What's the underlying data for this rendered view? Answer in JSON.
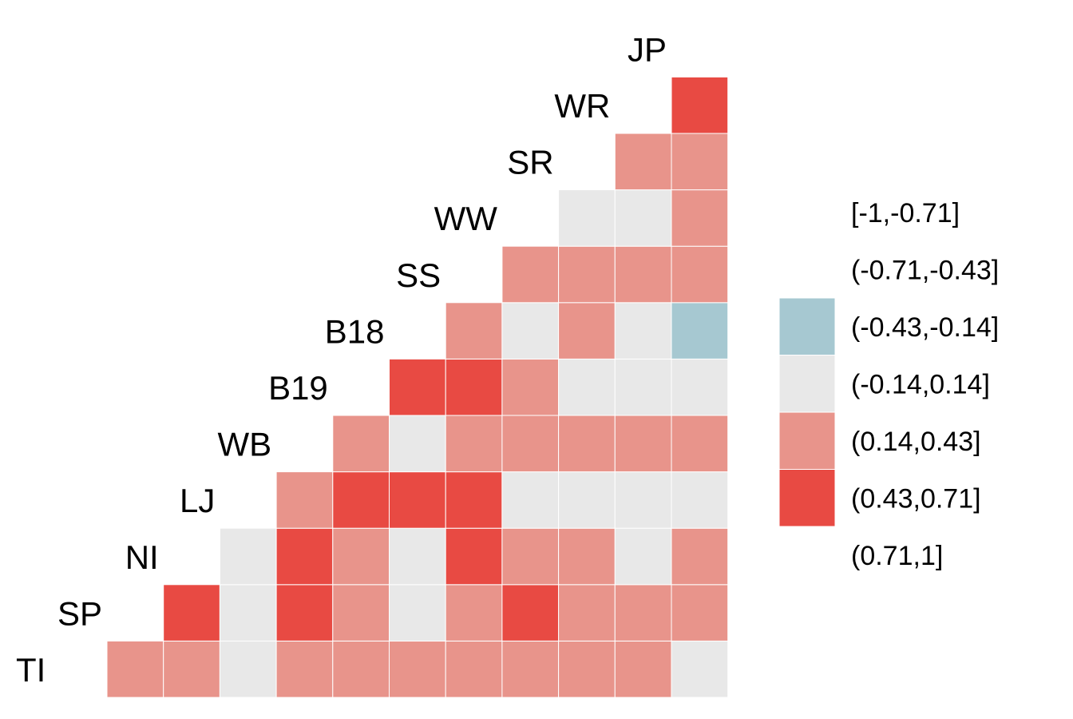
{
  "chart_data": {
    "type": "heatmap",
    "variables": [
      "TI",
      "SP",
      "NI",
      "LJ",
      "WB",
      "B19",
      "B18",
      "SS",
      "WW",
      "SR",
      "WR",
      "JP"
    ],
    "cells": [
      {
        "row": "SP",
        "col": "TI",
        "bin": "(0.14,0.43]"
      },
      {
        "row": "NI",
        "col": "TI",
        "bin": "(0.14,0.43]"
      },
      {
        "row": "NI",
        "col": "SP",
        "bin": "(0.43,0.71]"
      },
      {
        "row": "LJ",
        "col": "TI",
        "bin": "(-0.14,0.14]"
      },
      {
        "row": "LJ",
        "col": "SP",
        "bin": "(-0.14,0.14]"
      },
      {
        "row": "LJ",
        "col": "NI",
        "bin": "(-0.14,0.14]"
      },
      {
        "row": "WB",
        "col": "TI",
        "bin": "(0.14,0.43]"
      },
      {
        "row": "WB",
        "col": "SP",
        "bin": "(0.43,0.71]"
      },
      {
        "row": "WB",
        "col": "NI",
        "bin": "(0.43,0.71]"
      },
      {
        "row": "WB",
        "col": "LJ",
        "bin": "(0.14,0.43]"
      },
      {
        "row": "B19",
        "col": "TI",
        "bin": "(0.14,0.43]"
      },
      {
        "row": "B19",
        "col": "SP",
        "bin": "(0.14,0.43]"
      },
      {
        "row": "B19",
        "col": "NI",
        "bin": "(0.14,0.43]"
      },
      {
        "row": "B19",
        "col": "LJ",
        "bin": "(0.43,0.71]"
      },
      {
        "row": "B19",
        "col": "WB",
        "bin": "(0.14,0.43]"
      },
      {
        "row": "B18",
        "col": "TI",
        "bin": "(0.14,0.43]"
      },
      {
        "row": "B18",
        "col": "SP",
        "bin": "(-0.14,0.14]"
      },
      {
        "row": "B18",
        "col": "NI",
        "bin": "(-0.14,0.14]"
      },
      {
        "row": "B18",
        "col": "LJ",
        "bin": "(0.43,0.71]"
      },
      {
        "row": "B18",
        "col": "WB",
        "bin": "(-0.14,0.14]"
      },
      {
        "row": "B18",
        "col": "B19",
        "bin": "(0.43,0.71]"
      },
      {
        "row": "SS",
        "col": "TI",
        "bin": "(0.14,0.43]"
      },
      {
        "row": "SS",
        "col": "SP",
        "bin": "(0.14,0.43]"
      },
      {
        "row": "SS",
        "col": "NI",
        "bin": "(0.43,0.71]"
      },
      {
        "row": "SS",
        "col": "LJ",
        "bin": "(0.43,0.71]"
      },
      {
        "row": "SS",
        "col": "WB",
        "bin": "(0.14,0.43]"
      },
      {
        "row": "SS",
        "col": "B19",
        "bin": "(0.43,0.71]"
      },
      {
        "row": "SS",
        "col": "B18",
        "bin": "(0.14,0.43]"
      },
      {
        "row": "WW",
        "col": "TI",
        "bin": "(0.14,0.43]"
      },
      {
        "row": "WW",
        "col": "SP",
        "bin": "(0.43,0.71]"
      },
      {
        "row": "WW",
        "col": "NI",
        "bin": "(0.14,0.43]"
      },
      {
        "row": "WW",
        "col": "LJ",
        "bin": "(-0.14,0.14]"
      },
      {
        "row": "WW",
        "col": "WB",
        "bin": "(0.14,0.43]"
      },
      {
        "row": "WW",
        "col": "B19",
        "bin": "(0.14,0.43]"
      },
      {
        "row": "WW",
        "col": "B18",
        "bin": "(-0.14,0.14]"
      },
      {
        "row": "WW",
        "col": "SS",
        "bin": "(0.14,0.43]"
      },
      {
        "row": "SR",
        "col": "TI",
        "bin": "(0.14,0.43]"
      },
      {
        "row": "SR",
        "col": "SP",
        "bin": "(0.14,0.43]"
      },
      {
        "row": "SR",
        "col": "NI",
        "bin": "(0.14,0.43]"
      },
      {
        "row": "SR",
        "col": "LJ",
        "bin": "(-0.14,0.14]"
      },
      {
        "row": "SR",
        "col": "WB",
        "bin": "(0.14,0.43]"
      },
      {
        "row": "SR",
        "col": "B19",
        "bin": "(-0.14,0.14]"
      },
      {
        "row": "SR",
        "col": "B18",
        "bin": "(0.14,0.43]"
      },
      {
        "row": "SR",
        "col": "SS",
        "bin": "(0.14,0.43]"
      },
      {
        "row": "SR",
        "col": "WW",
        "bin": "(-0.14,0.14]"
      },
      {
        "row": "WR",
        "col": "TI",
        "bin": "(0.14,0.43]"
      },
      {
        "row": "WR",
        "col": "SP",
        "bin": "(0.14,0.43]"
      },
      {
        "row": "WR",
        "col": "NI",
        "bin": "(-0.14,0.14]"
      },
      {
        "row": "WR",
        "col": "LJ",
        "bin": "(-0.14,0.14]"
      },
      {
        "row": "WR",
        "col": "WB",
        "bin": "(0.14,0.43]"
      },
      {
        "row": "WR",
        "col": "B19",
        "bin": "(-0.14,0.14]"
      },
      {
        "row": "WR",
        "col": "B18",
        "bin": "(-0.14,0.14]"
      },
      {
        "row": "WR",
        "col": "SS",
        "bin": "(0.14,0.43]"
      },
      {
        "row": "WR",
        "col": "WW",
        "bin": "(-0.14,0.14]"
      },
      {
        "row": "WR",
        "col": "SR",
        "bin": "(0.14,0.43]"
      },
      {
        "row": "JP",
        "col": "TI",
        "bin": "(-0.14,0.14]"
      },
      {
        "row": "JP",
        "col": "SP",
        "bin": "(0.14,0.43]"
      },
      {
        "row": "JP",
        "col": "NI",
        "bin": "(0.14,0.43]"
      },
      {
        "row": "JP",
        "col": "LJ",
        "bin": "(-0.14,0.14]"
      },
      {
        "row": "JP",
        "col": "WB",
        "bin": "(0.14,0.43]"
      },
      {
        "row": "JP",
        "col": "B19",
        "bin": "(-0.14,0.14]"
      },
      {
        "row": "JP",
        "col": "B18",
        "bin": "(-0.43,-0.14]"
      },
      {
        "row": "JP",
        "col": "SS",
        "bin": "(0.14,0.43]"
      },
      {
        "row": "JP",
        "col": "WW",
        "bin": "(0.14,0.43]"
      },
      {
        "row": "JP",
        "col": "SR",
        "bin": "(0.14,0.43]"
      },
      {
        "row": "JP",
        "col": "WR",
        "bin": "(0.43,0.71]"
      }
    ],
    "legend": {
      "placement": "right",
      "bins": [
        {
          "label": "[-1,-0.71]",
          "color": null
        },
        {
          "label": "(-0.71,-0.43]",
          "color": null
        },
        {
          "label": "(-0.43,-0.14]",
          "color": "#a6c8d1"
        },
        {
          "label": "(-0.14,0.14]",
          "color": "#e8e8e8"
        },
        {
          "label": "(0.14,0.43]",
          "color": "#e8948b"
        },
        {
          "label": "(0.43,0.71]",
          "color": "#e84a43"
        },
        {
          "label": "(0.71,1]",
          "color": null
        }
      ]
    },
    "grid": false
  }
}
